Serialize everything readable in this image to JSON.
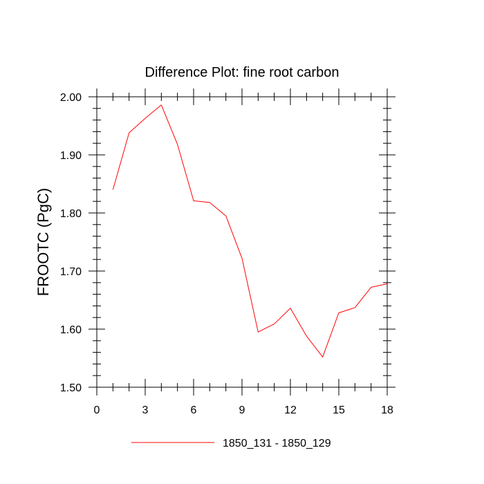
{
  "chart_data": {
    "type": "line",
    "title": "Difference Plot: fine root carbon",
    "xlabel": "",
    "ylabel": "FROOTC  (PgC)",
    "xlim": [
      0,
      18
    ],
    "ylim": [
      1.5,
      2.0
    ],
    "x_ticks": [
      0,
      3,
      6,
      9,
      12,
      15,
      18
    ],
    "x_tick_labels": [
      "0",
      "3",
      "6",
      "9",
      "12",
      "15",
      "18"
    ],
    "y_ticks": [
      1.5,
      1.6,
      1.7,
      1.8,
      1.9,
      2.0
    ],
    "y_tick_labels": [
      "1.50",
      "1.60",
      "1.70",
      "1.80",
      "1.90",
      "2.00"
    ],
    "grid": false,
    "legend_position": "bottom",
    "series": [
      {
        "name": "1850_131 - 1850_129",
        "color": "#ff0000",
        "x": [
          1,
          2,
          3,
          4,
          5,
          6,
          7,
          8,
          9,
          10,
          11,
          12,
          13,
          14,
          15,
          16,
          17,
          18
        ],
        "y": [
          1.84,
          1.938,
          1.963,
          1.986,
          1.918,
          1.821,
          1.818,
          1.795,
          1.722,
          1.595,
          1.609,
          1.636,
          1.588,
          1.552,
          1.628,
          1.637,
          1.672,
          1.678
        ]
      }
    ]
  }
}
